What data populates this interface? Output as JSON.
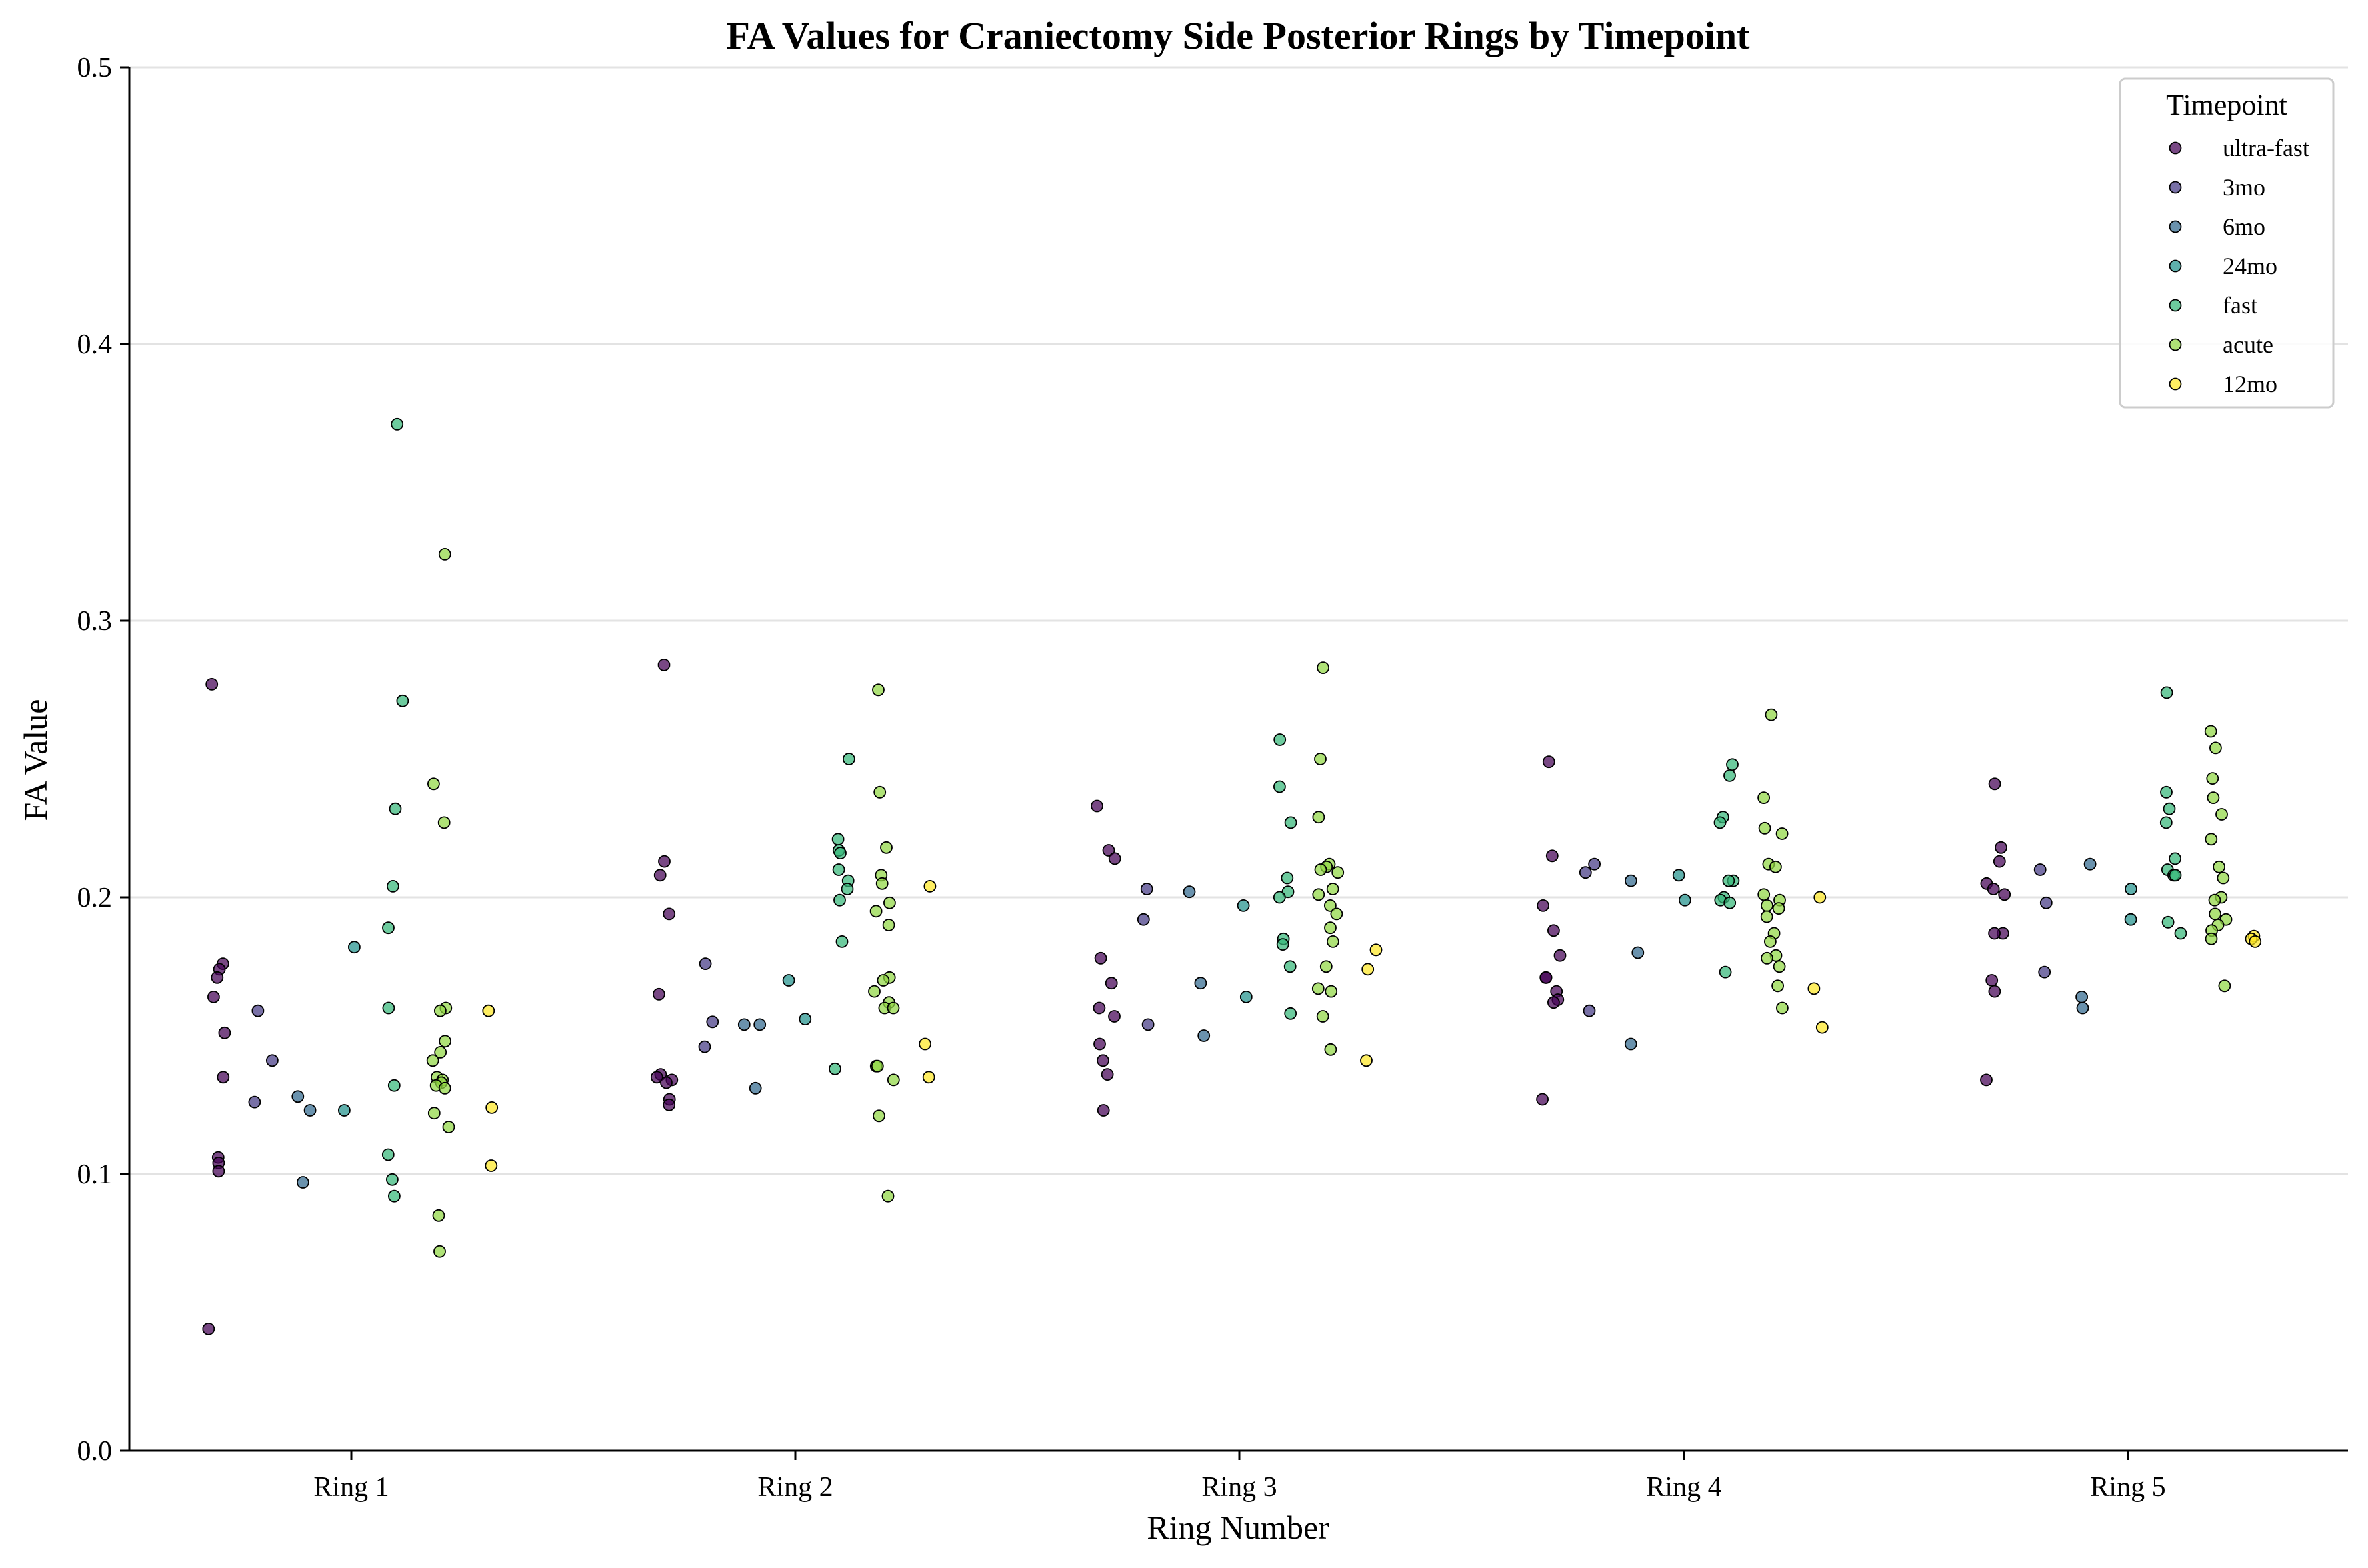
{
  "chart_data": {
    "type": "scatter",
    "title": "FA Values for Craniectomy Side Posterior Rings by Timepoint",
    "xlabel": "Ring Number",
    "ylabel": "FA Value",
    "categories": [
      "Ring 1",
      "Ring 2",
      "Ring 3",
      "Ring 4",
      "Ring 5"
    ],
    "ylim": [
      0,
      0.5
    ],
    "yticks": [
      "0.0",
      "0.1",
      "0.2",
      "0.3",
      "0.4",
      "0.5"
    ],
    "grid": "horizontal",
    "legend": {
      "title": "Timepoint",
      "placement": "top-right"
    },
    "series": [
      {
        "name": "ultra-fast",
        "color": "#440154",
        "points": [
          [
            1,
            0.277
          ],
          [
            1,
            0.176
          ],
          [
            1,
            0.174
          ],
          [
            1,
            0.171
          ],
          [
            1,
            0.164
          ],
          [
            1,
            0.151
          ],
          [
            1,
            0.135
          ],
          [
            1,
            0.106
          ],
          [
            1,
            0.104
          ],
          [
            1,
            0.101
          ],
          [
            1,
            0.044
          ],
          [
            2,
            0.284
          ],
          [
            2,
            0.213
          ],
          [
            2,
            0.208
          ],
          [
            2,
            0.194
          ],
          [
            2,
            0.165
          ],
          [
            2,
            0.136
          ],
          [
            2,
            0.135
          ],
          [
            2,
            0.134
          ],
          [
            2,
            0.133
          ],
          [
            2,
            0.127
          ],
          [
            2,
            0.125
          ],
          [
            3,
            0.233
          ],
          [
            3,
            0.217
          ],
          [
            3,
            0.214
          ],
          [
            3,
            0.178
          ],
          [
            3,
            0.169
          ],
          [
            3,
            0.16
          ],
          [
            3,
            0.157
          ],
          [
            3,
            0.147
          ],
          [
            3,
            0.141
          ],
          [
            3,
            0.136
          ],
          [
            3,
            0.123
          ],
          [
            4,
            0.249
          ],
          [
            4,
            0.215
          ],
          [
            4,
            0.197
          ],
          [
            4,
            0.188
          ],
          [
            4,
            0.179
          ],
          [
            4,
            0.171
          ],
          [
            4,
            0.171
          ],
          [
            4,
            0.166
          ],
          [
            4,
            0.163
          ],
          [
            4,
            0.162
          ],
          [
            4,
            0.127
          ],
          [
            5,
            0.241
          ],
          [
            5,
            0.218
          ],
          [
            5,
            0.213
          ],
          [
            5,
            0.205
          ],
          [
            5,
            0.203
          ],
          [
            5,
            0.201
          ],
          [
            5,
            0.187
          ],
          [
            5,
            0.187
          ],
          [
            5,
            0.17
          ],
          [
            5,
            0.166
          ],
          [
            5,
            0.134
          ]
        ]
      },
      {
        "name": "3mo",
        "color": "#443983",
        "points": [
          [
            1,
            0.159
          ],
          [
            1,
            0.141
          ],
          [
            1,
            0.126
          ],
          [
            2,
            0.176
          ],
          [
            2,
            0.155
          ],
          [
            2,
            0.146
          ],
          [
            3,
            0.203
          ],
          [
            3,
            0.192
          ],
          [
            3,
            0.154
          ],
          [
            4,
            0.212
          ],
          [
            4,
            0.209
          ],
          [
            4,
            0.159
          ],
          [
            5,
            0.21
          ],
          [
            5,
            0.198
          ],
          [
            5,
            0.173
          ]
        ]
      },
      {
        "name": "6mo",
        "color": "#31688e",
        "points": [
          [
            1,
            0.128
          ],
          [
            1,
            0.123
          ],
          [
            1,
            0.097
          ],
          [
            2,
            0.154
          ],
          [
            2,
            0.154
          ],
          [
            2,
            0.131
          ],
          [
            3,
            0.202
          ],
          [
            3,
            0.169
          ],
          [
            3,
            0.15
          ],
          [
            4,
            0.206
          ],
          [
            4,
            0.18
          ],
          [
            4,
            0.147
          ],
          [
            5,
            0.212
          ],
          [
            5,
            0.164
          ],
          [
            5,
            0.16
          ]
        ]
      },
      {
        "name": "24mo",
        "color": "#21918c",
        "points": [
          [
            1,
            0.182
          ],
          [
            1,
            0.123
          ],
          [
            2,
            0.17
          ],
          [
            2,
            0.156
          ],
          [
            3,
            0.197
          ],
          [
            3,
            0.164
          ],
          [
            4,
            0.208
          ],
          [
            4,
            0.199
          ],
          [
            5,
            0.203
          ],
          [
            5,
            0.192
          ]
        ]
      },
      {
        "name": "fast",
        "color": "#35b779",
        "points": [
          [
            1,
            0.371
          ],
          [
            1,
            0.271
          ],
          [
            1,
            0.232
          ],
          [
            1,
            0.204
          ],
          [
            1,
            0.189
          ],
          [
            1,
            0.16
          ],
          [
            1,
            0.132
          ],
          [
            1,
            0.107
          ],
          [
            1,
            0.098
          ],
          [
            1,
            0.092
          ],
          [
            2,
            0.25
          ],
          [
            2,
            0.221
          ],
          [
            2,
            0.217
          ],
          [
            2,
            0.216
          ],
          [
            2,
            0.21
          ],
          [
            2,
            0.206
          ],
          [
            2,
            0.203
          ],
          [
            2,
            0.199
          ],
          [
            2,
            0.184
          ],
          [
            2,
            0.138
          ],
          [
            3,
            0.257
          ],
          [
            3,
            0.24
          ],
          [
            3,
            0.227
          ],
          [
            3,
            0.207
          ],
          [
            3,
            0.202
          ],
          [
            3,
            0.2
          ],
          [
            3,
            0.185
          ],
          [
            3,
            0.183
          ],
          [
            3,
            0.175
          ],
          [
            3,
            0.158
          ],
          [
            4,
            0.248
          ],
          [
            4,
            0.244
          ],
          [
            4,
            0.229
          ],
          [
            4,
            0.227
          ],
          [
            4,
            0.206
          ],
          [
            4,
            0.206
          ],
          [
            4,
            0.2
          ],
          [
            4,
            0.199
          ],
          [
            4,
            0.198
          ],
          [
            4,
            0.173
          ],
          [
            5,
            0.274
          ],
          [
            5,
            0.238
          ],
          [
            5,
            0.232
          ],
          [
            5,
            0.227
          ],
          [
            5,
            0.214
          ],
          [
            5,
            0.21
          ],
          [
            5,
            0.208
          ],
          [
            5,
            0.208
          ],
          [
            5,
            0.191
          ],
          [
            5,
            0.187
          ]
        ]
      },
      {
        "name": "acute",
        "color": "#90d743",
        "points": [
          [
            1,
            0.324
          ],
          [
            1,
            0.241
          ],
          [
            1,
            0.227
          ],
          [
            1,
            0.16
          ],
          [
            1,
            0.159
          ],
          [
            1,
            0.148
          ],
          [
            1,
            0.144
          ],
          [
            1,
            0.141
          ],
          [
            1,
            0.135
          ],
          [
            1,
            0.134
          ],
          [
            1,
            0.133
          ],
          [
            1,
            0.132
          ],
          [
            1,
            0.131
          ],
          [
            1,
            0.122
          ],
          [
            1,
            0.117
          ],
          [
            1,
            0.085
          ],
          [
            1,
            0.072
          ],
          [
            2,
            0.275
          ],
          [
            2,
            0.238
          ],
          [
            2,
            0.218
          ],
          [
            2,
            0.208
          ],
          [
            2,
            0.205
          ],
          [
            2,
            0.198
          ],
          [
            2,
            0.195
          ],
          [
            2,
            0.19
          ],
          [
            2,
            0.171
          ],
          [
            2,
            0.17
          ],
          [
            2,
            0.166
          ],
          [
            2,
            0.162
          ],
          [
            2,
            0.16
          ],
          [
            2,
            0.16
          ],
          [
            2,
            0.139
          ],
          [
            2,
            0.139
          ],
          [
            2,
            0.134
          ],
          [
            2,
            0.121
          ],
          [
            2,
            0.092
          ],
          [
            3,
            0.283
          ],
          [
            3,
            0.25
          ],
          [
            3,
            0.229
          ],
          [
            3,
            0.212
          ],
          [
            3,
            0.211
          ],
          [
            3,
            0.21
          ],
          [
            3,
            0.209
          ],
          [
            3,
            0.203
          ],
          [
            3,
            0.201
          ],
          [
            3,
            0.197
          ],
          [
            3,
            0.194
          ],
          [
            3,
            0.189
          ],
          [
            3,
            0.184
          ],
          [
            3,
            0.175
          ],
          [
            3,
            0.167
          ],
          [
            3,
            0.166
          ],
          [
            3,
            0.157
          ],
          [
            3,
            0.145
          ],
          [
            4,
            0.266
          ],
          [
            4,
            0.236
          ],
          [
            4,
            0.225
          ],
          [
            4,
            0.223
          ],
          [
            4,
            0.212
          ],
          [
            4,
            0.211
          ],
          [
            4,
            0.201
          ],
          [
            4,
            0.199
          ],
          [
            4,
            0.197
          ],
          [
            4,
            0.196
          ],
          [
            4,
            0.193
          ],
          [
            4,
            0.187
          ],
          [
            4,
            0.184
          ],
          [
            4,
            0.179
          ],
          [
            4,
            0.178
          ],
          [
            4,
            0.175
          ],
          [
            4,
            0.168
          ],
          [
            4,
            0.16
          ],
          [
            5,
            0.26
          ],
          [
            5,
            0.254
          ],
          [
            5,
            0.243
          ],
          [
            5,
            0.236
          ],
          [
            5,
            0.23
          ],
          [
            5,
            0.221
          ],
          [
            5,
            0.211
          ],
          [
            5,
            0.207
          ],
          [
            5,
            0.2
          ],
          [
            5,
            0.199
          ],
          [
            5,
            0.194
          ],
          [
            5,
            0.192
          ],
          [
            5,
            0.19
          ],
          [
            5,
            0.188
          ],
          [
            5,
            0.185
          ],
          [
            5,
            0.168
          ]
        ]
      },
      {
        "name": "12mo",
        "color": "#fde725",
        "points": [
          [
            1,
            0.159
          ],
          [
            1,
            0.124
          ],
          [
            1,
            0.103
          ],
          [
            2,
            0.204
          ],
          [
            2,
            0.147
          ],
          [
            2,
            0.135
          ],
          [
            3,
            0.181
          ],
          [
            3,
            0.174
          ],
          [
            3,
            0.141
          ],
          [
            4,
            0.2
          ],
          [
            4,
            0.167
          ],
          [
            4,
            0.153
          ],
          [
            5,
            0.186
          ],
          [
            5,
            0.185
          ],
          [
            5,
            0.184
          ]
        ]
      }
    ]
  }
}
